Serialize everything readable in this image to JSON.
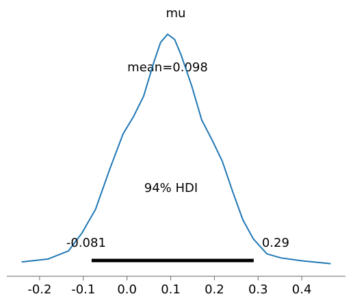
{
  "chart_data": {
    "type": "density",
    "title": "mu",
    "x": [
      -0.241,
      -0.181,
      -0.134,
      -0.103,
      -0.072,
      -0.04,
      -0.009,
      0.015,
      0.038,
      0.062,
      0.077,
      0.093,
      0.109,
      0.124,
      0.148,
      0.171,
      0.195,
      0.218,
      0.242,
      0.265,
      0.289,
      0.32,
      0.352,
      0.399,
      0.466
    ],
    "values": [
      0.07,
      0.12,
      0.26,
      0.57,
      0.98,
      1.66,
      2.28,
      2.58,
      2.93,
      3.53,
      3.86,
      4.0,
      3.91,
      3.64,
      3.11,
      2.52,
      2.17,
      1.81,
      1.28,
      0.8,
      0.47,
      0.21,
      0.14,
      0.09,
      0.04
    ],
    "color": "#1f77b4",
    "mean_text": "mean=0.098",
    "hdi_text": "94% HDI",
    "hdi": [
      -0.081,
      0.29
    ],
    "xlim": [
      -0.275,
      0.5
    ],
    "ylim": [
      0,
      4
    ],
    "xticks": [
      -0.2,
      -0.1,
      {
        "value": 0,
        "label": "0.0"
      },
      0.1,
      0.2,
      0.3,
      0.4
    ]
  }
}
